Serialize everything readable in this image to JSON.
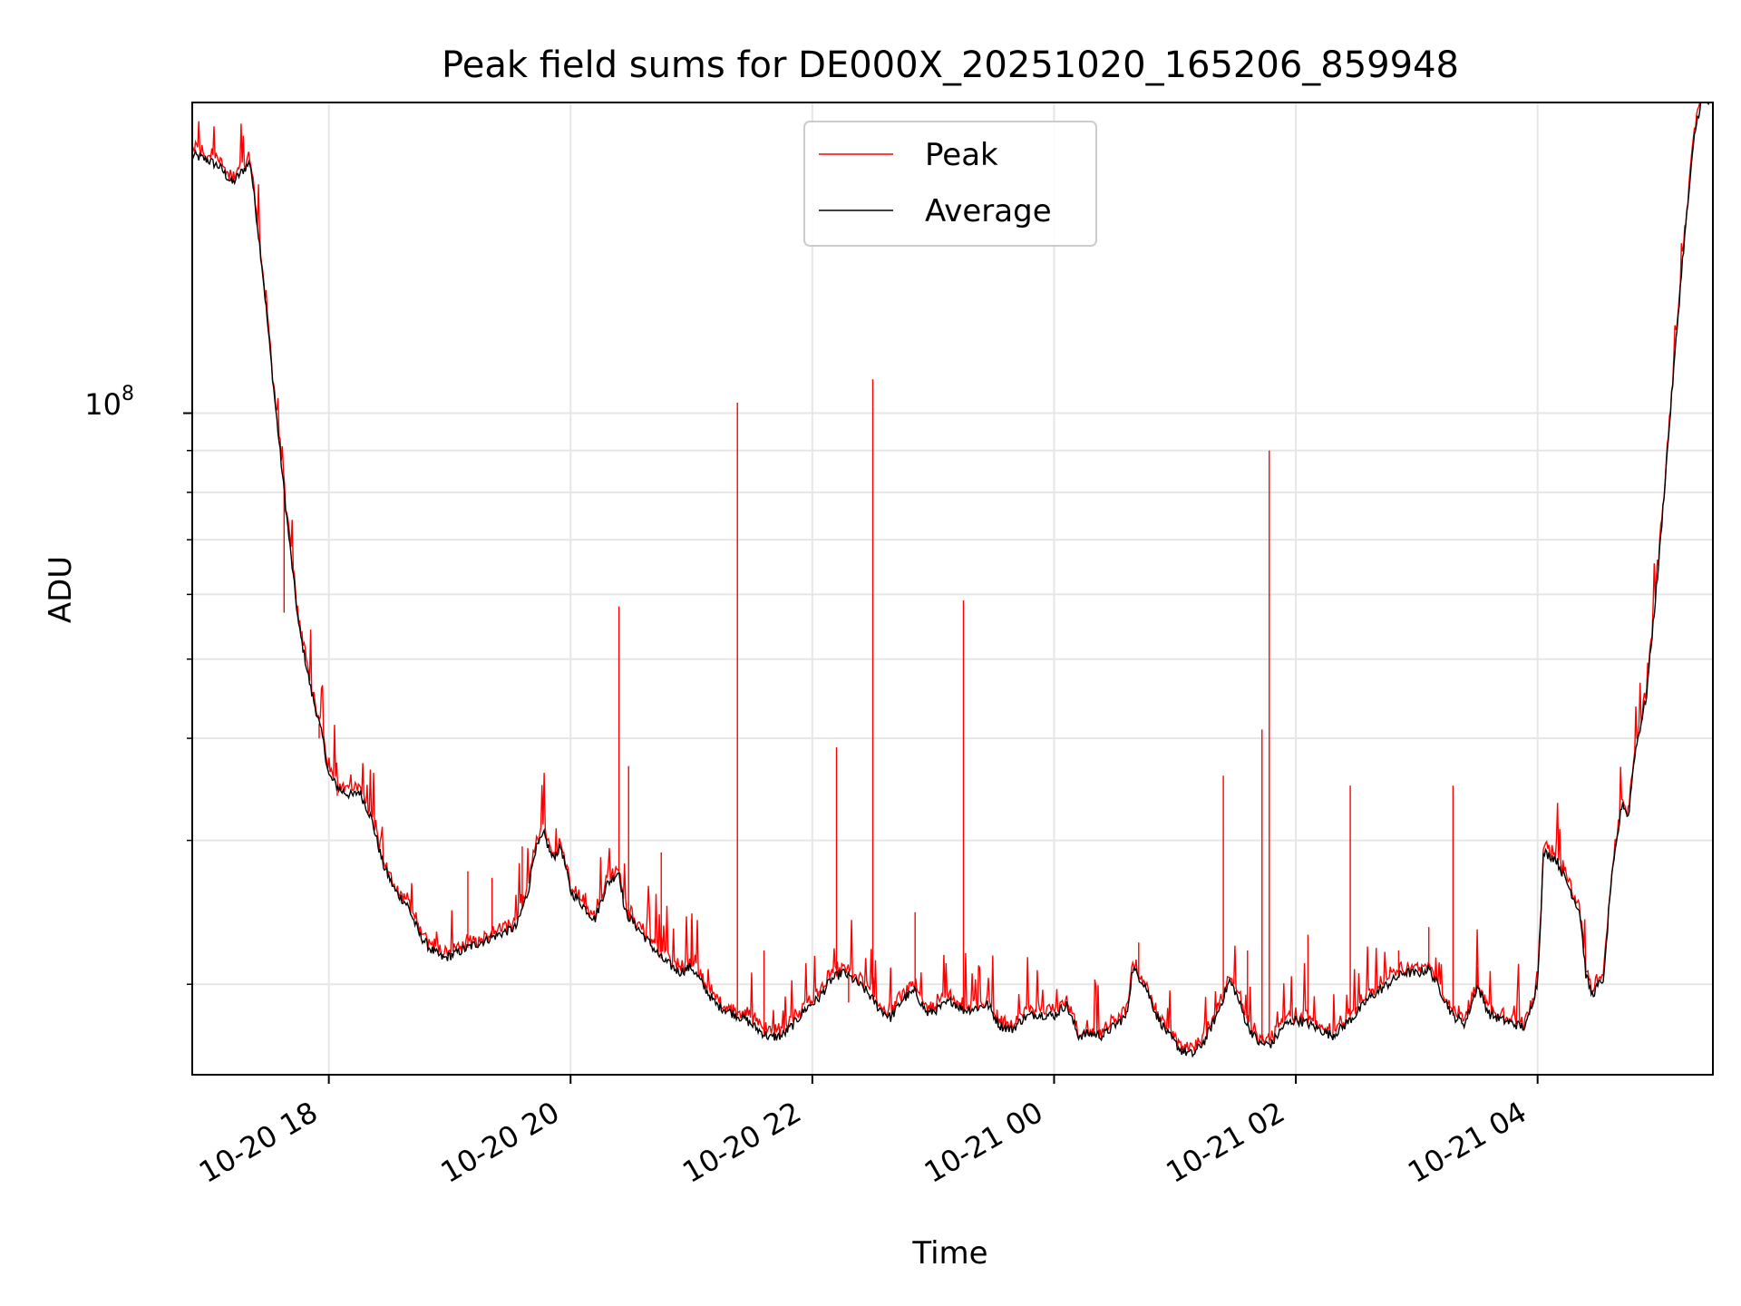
{
  "chart_data": {
    "type": "line",
    "title": "Peak field sums for DE000X_20251020_165206_859948",
    "xlabel": "Time",
    "ylabel": "ADU",
    "y_scale": "log",
    "y_major_tick_label": {
      "base": "10",
      "exp": "8",
      "value": 100000000
    },
    "y_minor_ticks": [
      20000000,
      30000000,
      40000000,
      50000000,
      60000000,
      70000000,
      80000000,
      90000000
    ],
    "ylim": [
      15500000,
      240000000
    ],
    "xlim_hours": [
      16.87,
      29.45
    ],
    "x_ticks": [
      {
        "hour": 18,
        "label": "10-20 18"
      },
      {
        "hour": 20,
        "label": "10-20 20"
      },
      {
        "hour": 22,
        "label": "10-20 22"
      },
      {
        "hour": 24,
        "label": "10-21 00"
      },
      {
        "hour": 26,
        "label": "10-21 02"
      },
      {
        "hour": 28,
        "label": "10-21 04"
      }
    ],
    "grid": true,
    "legend_location": "upper center",
    "series": [
      {
        "name": "Peak",
        "color": "#ff0000"
      },
      {
        "name": "Average",
        "color": "#000000"
      }
    ],
    "average_points": [
      [
        16.87,
        207000000
      ],
      [
        17.0,
        204000000
      ],
      [
        17.1,
        200000000
      ],
      [
        17.2,
        191000000
      ],
      [
        17.3,
        199000000
      ],
      [
        17.35,
        203000000
      ],
      [
        17.45,
        150000000
      ],
      [
        17.55,
        105000000
      ],
      [
        17.65,
        75000000
      ],
      [
        17.75,
        55000000
      ],
      [
        17.85,
        46000000
      ],
      [
        17.95,
        40000000
      ],
      [
        18.0,
        36000000
      ],
      [
        18.1,
        34500000
      ],
      [
        18.2,
        34000000
      ],
      [
        18.25,
        34500000
      ],
      [
        18.35,
        32000000
      ],
      [
        18.45,
        28000000
      ],
      [
        18.55,
        26000000
      ],
      [
        18.65,
        25000000
      ],
      [
        18.75,
        23000000
      ],
      [
        18.85,
        22000000
      ],
      [
        18.95,
        21500000
      ],
      [
        19.1,
        22000000
      ],
      [
        19.25,
        22500000
      ],
      [
        19.4,
        23000000
      ],
      [
        19.55,
        23500000
      ],
      [
        19.65,
        26000000
      ],
      [
        19.7,
        29000000
      ],
      [
        19.78,
        30500000
      ],
      [
        19.85,
        28500000
      ],
      [
        19.92,
        29500000
      ],
      [
        20.0,
        26000000
      ],
      [
        20.1,
        25000000
      ],
      [
        20.2,
        24000000
      ],
      [
        20.3,
        26500000
      ],
      [
        20.4,
        27500000
      ],
      [
        20.45,
        24500000
      ],
      [
        20.55,
        23500000
      ],
      [
        20.65,
        22500000
      ],
      [
        20.75,
        21500000
      ],
      [
        20.9,
        20700000
      ],
      [
        21.0,
        21000000
      ],
      [
        21.1,
        19900000
      ],
      [
        21.2,
        18900000
      ],
      [
        21.35,
        18400000
      ],
      [
        21.45,
        18100000
      ],
      [
        21.55,
        17600000
      ],
      [
        21.65,
        17200000
      ],
      [
        21.75,
        17300000
      ],
      [
        21.85,
        17900000
      ],
      [
        21.95,
        18700000
      ],
      [
        22.05,
        19200000
      ],
      [
        22.15,
        20200000
      ],
      [
        22.25,
        20700000
      ],
      [
        22.35,
        20200000
      ],
      [
        22.45,
        19600000
      ],
      [
        22.55,
        18700000
      ],
      [
        22.65,
        18200000
      ],
      [
        22.75,
        19200000
      ],
      [
        22.85,
        19600000
      ],
      [
        22.95,
        18400000
      ],
      [
        23.05,
        18700000
      ],
      [
        23.15,
        19100000
      ],
      [
        23.25,
        18600000
      ],
      [
        23.35,
        18700000
      ],
      [
        23.45,
        18900000
      ],
      [
        23.55,
        17800000
      ],
      [
        23.65,
        17600000
      ],
      [
        23.75,
        18200000
      ],
      [
        23.85,
        18400000
      ],
      [
        24.0,
        18300000
      ],
      [
        24.1,
        18900000
      ],
      [
        24.2,
        17300000
      ],
      [
        24.3,
        17400000
      ],
      [
        24.4,
        17300000
      ],
      [
        24.5,
        17800000
      ],
      [
        24.6,
        18300000
      ],
      [
        24.65,
        20900000
      ],
      [
        24.75,
        20000000
      ],
      [
        24.85,
        18300000
      ],
      [
        24.95,
        17300000
      ],
      [
        25.05,
        16600000
      ],
      [
        25.15,
        16400000
      ],
      [
        25.25,
        17100000
      ],
      [
        25.35,
        18400000
      ],
      [
        25.45,
        20200000
      ],
      [
        25.5,
        19600000
      ],
      [
        25.6,
        17800000
      ],
      [
        25.7,
        16900000
      ],
      [
        25.8,
        16900000
      ],
      [
        25.9,
        17800000
      ],
      [
        26.0,
        18100000
      ],
      [
        26.1,
        17900000
      ],
      [
        26.2,
        17600000
      ],
      [
        26.3,
        17300000
      ],
      [
        26.4,
        17800000
      ],
      [
        26.5,
        18400000
      ],
      [
        26.6,
        19200000
      ],
      [
        26.7,
        19700000
      ],
      [
        26.8,
        20200000
      ],
      [
        26.9,
        20700000
      ],
      [
        27.0,
        20600000
      ],
      [
        27.1,
        20900000
      ],
      [
        27.2,
        19600000
      ],
      [
        27.3,
        18300000
      ],
      [
        27.4,
        17900000
      ],
      [
        27.5,
        19900000
      ],
      [
        27.6,
        18400000
      ],
      [
        27.7,
        18100000
      ],
      [
        27.8,
        17900000
      ],
      [
        27.9,
        17700000
      ],
      [
        28.0,
        20100000
      ],
      [
        28.05,
        29000000
      ],
      [
        28.15,
        28500000
      ],
      [
        28.25,
        26500000
      ],
      [
        28.35,
        24500000
      ],
      [
        28.4,
        20500000
      ],
      [
        28.45,
        19400000
      ],
      [
        28.55,
        20400000
      ],
      [
        28.6,
        26000000
      ],
      [
        28.7,
        33500000
      ],
      [
        28.75,
        32000000
      ],
      [
        28.8,
        38000000
      ],
      [
        28.9,
        45000000
      ],
      [
        29.0,
        65000000
      ],
      [
        29.1,
        101000000
      ],
      [
        29.2,
        155000000
      ],
      [
        29.3,
        220000000
      ],
      [
        29.35,
        240000000
      ]
    ],
    "peak_spikes": [
      [
        17.63,
        57000000
      ],
      [
        17.92,
        40000000
      ],
      [
        18.07,
        34000000
      ],
      [
        19.15,
        27500000
      ],
      [
        19.35,
        27000000
      ],
      [
        19.6,
        29500000
      ],
      [
        20.4,
        58000000
      ],
      [
        20.48,
        37000000
      ],
      [
        20.75,
        29000000
      ],
      [
        21.0,
        24000000
      ],
      [
        21.38,
        103000000
      ],
      [
        21.6,
        22000000
      ],
      [
        22.2,
        39000000
      ],
      [
        22.3,
        19000000
      ],
      [
        22.5,
        110000000
      ],
      [
        22.85,
        24500000
      ],
      [
        23.25,
        59000000
      ],
      [
        24.7,
        22500000
      ],
      [
        25.4,
        36000000
      ],
      [
        25.6,
        22000000
      ],
      [
        25.72,
        41000000
      ],
      [
        25.78,
        90000000
      ],
      [
        26.1,
        23000000
      ],
      [
        26.45,
        35000000
      ],
      [
        26.85,
        22000000
      ],
      [
        27.1,
        23500000
      ],
      [
        27.3,
        35000000
      ],
      [
        27.5,
        21000000
      ]
    ]
  }
}
